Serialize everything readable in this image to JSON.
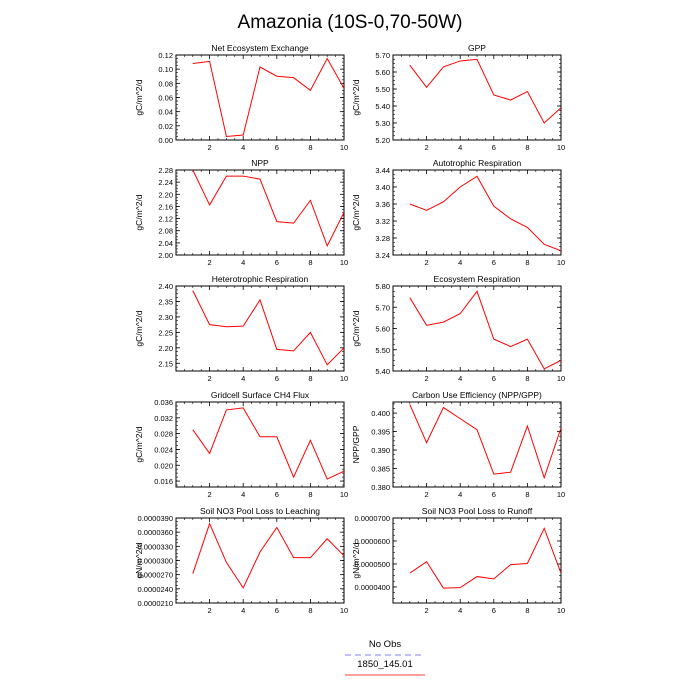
{
  "figure": {
    "title": "Amazonia (10S-0,70-50W)",
    "legend": {
      "placement": "bottom-center",
      "entries": [
        {
          "label": "No Obs",
          "color": "#9999ff",
          "style": "dashed"
        },
        {
          "label": "1850_145.01",
          "color": "#ff6666",
          "style": "solid"
        }
      ]
    }
  },
  "chart_data": [
    {
      "type": "line",
      "title": "Net Ecosystem Exchange",
      "ylabel": "gC/m^2/d",
      "xlim": [
        0,
        10
      ],
      "ylim": [
        0.0,
        0.12
      ],
      "xticks": [
        "2",
        "4",
        "6",
        "8",
        "10"
      ],
      "yticks": [
        "0.00",
        "0.02",
        "0.04",
        "0.06",
        "0.08",
        "0.10",
        "0.12"
      ],
      "x": [
        1,
        2,
        3,
        4,
        5,
        6,
        7,
        8,
        9,
        10
      ],
      "series": [
        {
          "color": "#ff0000",
          "values": [
            0.108,
            0.111,
            0.005,
            0.007,
            0.103,
            0.09,
            0.088,
            0.07,
            0.115,
            0.073
          ]
        }
      ]
    },
    {
      "type": "line",
      "title": "GPP",
      "ylabel": "gC/m^2/d",
      "xlim": [
        0,
        10
      ],
      "ylim": [
        5.2,
        5.7
      ],
      "xticks": [
        "2",
        "4",
        "6",
        "8",
        "10"
      ],
      "yticks": [
        "5.20",
        "5.30",
        "5.40",
        "5.50",
        "5.60",
        "5.70"
      ],
      "x": [
        1,
        2,
        3,
        4,
        5,
        6,
        7,
        8,
        9,
        10
      ],
      "series": [
        {
          "color": "#ff0000",
          "values": [
            5.64,
            5.51,
            5.63,
            5.665,
            5.675,
            5.465,
            5.435,
            5.485,
            5.3,
            5.39
          ]
        }
      ]
    },
    {
      "type": "line",
      "title": "NPP",
      "ylabel": "gC/m^2/d",
      "xlim": [
        0,
        10
      ],
      "ylim": [
        2.0,
        2.28
      ],
      "xticks": [
        "2",
        "4",
        "6",
        "8",
        "10"
      ],
      "yticks": [
        "2.00",
        "2.04",
        "2.08",
        "2.12",
        "2.16",
        "2.20",
        "2.24",
        "2.28"
      ],
      "x": [
        1,
        2,
        3,
        4,
        5,
        6,
        7,
        8,
        9,
        10
      ],
      "series": [
        {
          "color": "#ff0000",
          "values": [
            2.28,
            2.165,
            2.26,
            2.26,
            2.25,
            2.11,
            2.105,
            2.18,
            2.03,
            2.14
          ]
        }
      ]
    },
    {
      "type": "line",
      "title": "Autotrophic Respiration",
      "ylabel": "gC/m^2/d",
      "xlim": [
        0,
        10
      ],
      "ylim": [
        3.24,
        3.44
      ],
      "xticks": [
        "2",
        "4",
        "6",
        "8",
        "10"
      ],
      "yticks": [
        "3.24",
        "3.28",
        "3.32",
        "3.36",
        "3.40",
        "3.44"
      ],
      "x": [
        1,
        2,
        3,
        4,
        5,
        6,
        7,
        8,
        9,
        10
      ],
      "series": [
        {
          "color": "#ff0000",
          "values": [
            3.36,
            3.345,
            3.365,
            3.4,
            3.425,
            3.355,
            3.325,
            3.305,
            3.265,
            3.25
          ]
        }
      ]
    },
    {
      "type": "line",
      "title": "Heterotrophic Respiration",
      "ylabel": "gC/m^2/d",
      "xlim": [
        0,
        10
      ],
      "ylim": [
        2.125,
        2.4
      ],
      "xticks": [
        "2",
        "4",
        "6",
        "8",
        "10"
      ],
      "yticks": [
        "2.15",
        "2.20",
        "2.25",
        "2.30",
        "2.35",
        "2.40"
      ],
      "x": [
        1,
        2,
        3,
        4,
        5,
        6,
        7,
        8,
        9,
        10
      ],
      "series": [
        {
          "color": "#ff0000",
          "values": [
            2.385,
            2.275,
            2.268,
            2.27,
            2.355,
            2.195,
            2.19,
            2.25,
            2.145,
            2.2
          ]
        }
      ]
    },
    {
      "type": "line",
      "title": "Ecosystem Respiration",
      "ylabel": "gC/m^2/d",
      "xlim": [
        0,
        10
      ],
      "ylim": [
        5.4,
        5.8
      ],
      "xticks": [
        "2",
        "4",
        "6",
        "8",
        "10"
      ],
      "yticks": [
        "5.40",
        "5.50",
        "5.60",
        "5.70",
        "5.80"
      ],
      "x": [
        1,
        2,
        3,
        4,
        5,
        6,
        7,
        8,
        9,
        10
      ],
      "series": [
        {
          "color": "#ff0000",
          "values": [
            5.745,
            5.615,
            5.63,
            5.67,
            5.775,
            5.55,
            5.515,
            5.55,
            5.41,
            5.45
          ]
        }
      ]
    },
    {
      "type": "line",
      "title": "Gridcell Surface CH4 Flux",
      "ylabel": "gC/m^2/d",
      "xlim": [
        0,
        10
      ],
      "ylim": [
        0.0145,
        0.036
      ],
      "xticks": [
        "2",
        "4",
        "6",
        "8",
        "10"
      ],
      "yticks": [
        "0.016",
        "0.020",
        "0.024",
        "0.028",
        "0.032",
        "0.036"
      ],
      "x": [
        1,
        2,
        3,
        4,
        5,
        6,
        7,
        8,
        9,
        10
      ],
      "series": [
        {
          "color": "#ff0000",
          "values": [
            0.029,
            0.023,
            0.034,
            0.0345,
            0.0272,
            0.0272,
            0.017,
            0.0263,
            0.0165,
            0.0185
          ]
        }
      ]
    },
    {
      "type": "line",
      "title": "Carbon Use Efficiency (NPP/GPP)",
      "ylabel": "NPP/GPP",
      "xlim": [
        0,
        10
      ],
      "ylim": [
        0.38,
        0.403
      ],
      "xticks": [
        "2",
        "4",
        "6",
        "8",
        "10"
      ],
      "yticks": [
        "0.380",
        "0.385",
        "0.390",
        "0.395",
        "0.400"
      ],
      "x": [
        1,
        2,
        3,
        4,
        5,
        6,
        7,
        8,
        9,
        10
      ],
      "series": [
        {
          "color": "#ff0000",
          "values": [
            0.4023,
            0.392,
            0.4015,
            0.3985,
            0.3955,
            0.3835,
            0.384,
            0.3965,
            0.3825,
            0.396
          ]
        }
      ]
    },
    {
      "type": "line",
      "title": "Soil NO3 Pool Loss to Leaching",
      "ylabel": "gN/m^2/d",
      "xlim": [
        0,
        10
      ],
      "ylim": [
        2.1e-05,
        3.9e-05
      ],
      "xticks": [
        "2",
        "4",
        "6",
        "8",
        "10"
      ],
      "yticks": [
        "0.0000210",
        "0.0000240",
        "0.0000270",
        "0.0000300",
        "0.0000330",
        "0.0000360",
        "0.0000390"
      ],
      "x": [
        1,
        2,
        3,
        4,
        5,
        6,
        7,
        8,
        9,
        10
      ],
      "series": [
        {
          "color": "#ff0000",
          "values": [
            2.72e-05,
            3.78e-05,
            2.96e-05,
            2.42e-05,
            3.18e-05,
            3.7e-05,
            3.06e-05,
            3.06e-05,
            3.46e-05,
            3.1e-05
          ]
        }
      ]
    },
    {
      "type": "line",
      "title": "Soil NO3 Pool Loss to Runoff",
      "ylabel": "gN/m^2/d",
      "xlim": [
        0,
        10
      ],
      "ylim": [
        3.3e-05,
        7e-05
      ],
      "xticks": [
        "2",
        "4",
        "6",
        "8",
        "10"
      ],
      "yticks": [
        "0.0000400",
        "0.0000500",
        "0.0000600",
        "0.0000700"
      ],
      "x": [
        1,
        2,
        3,
        4,
        5,
        6,
        7,
        8,
        9,
        10
      ],
      "series": [
        {
          "color": "#ff0000",
          "values": [
            4.6e-05,
            5.1e-05,
            3.95e-05,
            3.97e-05,
            4.45e-05,
            4.35e-05,
            4.97e-05,
            5.02e-05,
            6.55e-05,
            4.6e-05
          ]
        }
      ]
    }
  ]
}
